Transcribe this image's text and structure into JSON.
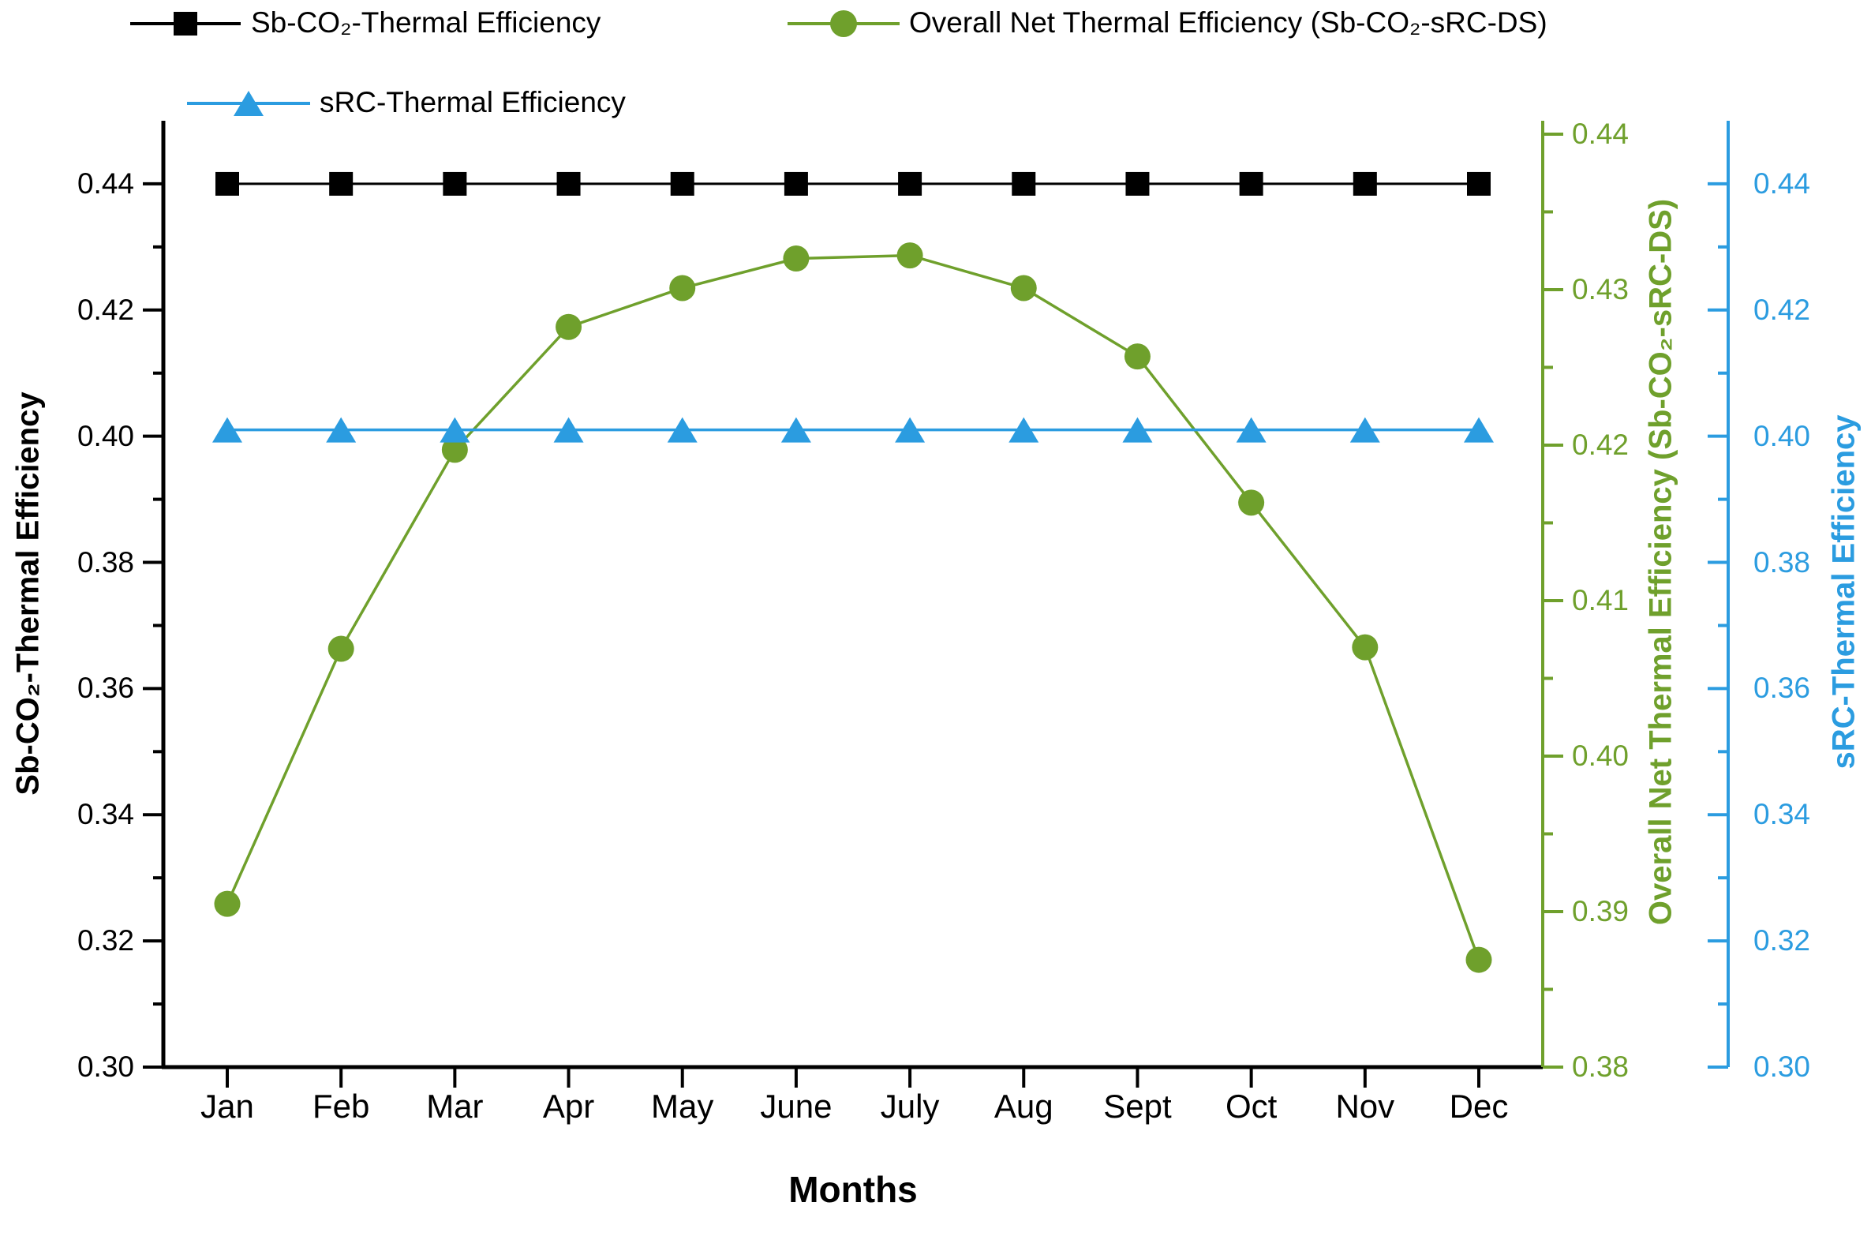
{
  "chart_data": {
    "type": "line",
    "categories": [
      "Jan",
      "Feb",
      "Mar",
      "Apr",
      "May",
      "June",
      "July",
      "Aug",
      "Sept",
      "Oct",
      "Nov",
      "Dec"
    ],
    "xlabel": "Months",
    "grid": false,
    "legend_position": "top-left",
    "series": [
      {
        "name": "Sb-CO₂-Thermal Efficiency",
        "axis": "left",
        "marker": "square",
        "color": "#000000",
        "values": [
          0.44,
          0.44,
          0.44,
          0.44,
          0.44,
          0.44,
          0.44,
          0.44,
          0.44,
          0.44,
          0.44,
          0.44
        ]
      },
      {
        "name": "Overall Net Thermal Efficiency (Sb-CO₂-sRC-DS)",
        "axis": "green",
        "marker": "circle",
        "color": "#6FA02C",
        "values": [
          0.3905,
          0.4069,
          0.4197,
          0.4276,
          0.4301,
          0.432,
          0.4322,
          0.4301,
          0.4257,
          0.4163,
          0.407,
          0.3869
        ]
      },
      {
        "name": "sRC-Thermal Efficiency",
        "axis": "blue",
        "marker": "triangle",
        "color": "#2B9CE0",
        "values": [
          0.401,
          0.401,
          0.401,
          0.401,
          0.401,
          0.401,
          0.401,
          0.401,
          0.401,
          0.401,
          0.401,
          0.401
        ]
      }
    ],
    "axes": {
      "left": {
        "label": "Sb-CO₂-Thermal Efficiency",
        "color": "#000000",
        "min": 0.3,
        "max": 0.45,
        "tick_values": [
          0.3,
          0.32,
          0.34,
          0.36,
          0.38,
          0.4,
          0.42,
          0.44
        ],
        "tick_labels": [
          "0.30",
          "0.32",
          "0.34",
          "0.36",
          "0.38",
          "0.40",
          "0.42",
          "0.44"
        ],
        "minor_step": 0.01
      },
      "green": {
        "label": "Overall Net Thermal Efficiency (Sb-CO₂-sRC-DS)",
        "color": "#6FA02C",
        "min": 0.38,
        "max": 0.44086,
        "tick_values": [
          0.38,
          0.39,
          0.4,
          0.41,
          0.42,
          0.43,
          0.44
        ],
        "tick_labels": [
          "0.38",
          "0.39",
          "0.40",
          "0.41",
          "0.42",
          "0.43",
          "0.44"
        ],
        "minor_step": 0.005
      },
      "blue": {
        "label": "sRC-Thermal Efficiency",
        "color": "#2B9CE0",
        "min": 0.3,
        "max": 0.45,
        "tick_values": [
          0.3,
          0.32,
          0.34,
          0.36,
          0.38,
          0.4,
          0.42,
          0.44
        ],
        "tick_labels": [
          "0.30",
          "0.32",
          "0.34",
          "0.36",
          "0.38",
          "0.40",
          "0.42",
          "0.44"
        ],
        "minor_step": 0.01
      }
    }
  }
}
